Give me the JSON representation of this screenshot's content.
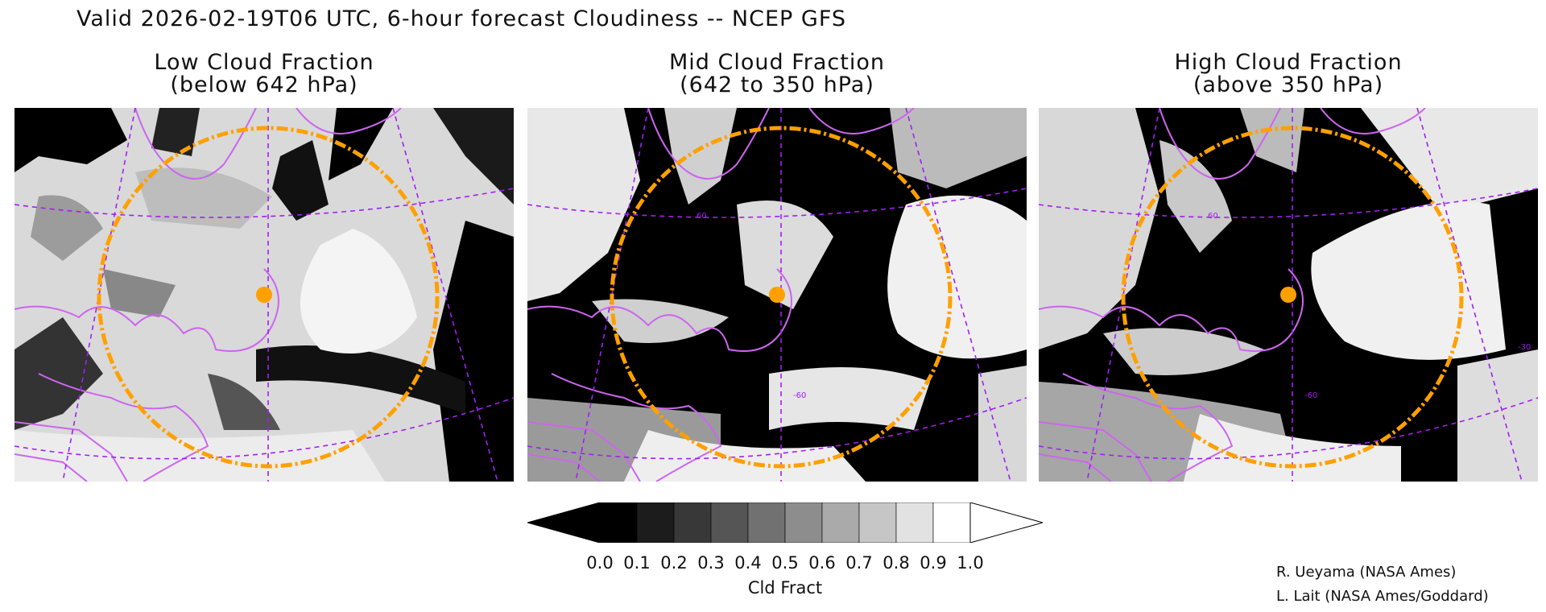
{
  "title": "Valid 2026-02-19T06 UTC, 6-hour forecast Cloudiness -- NCEP GFS",
  "panels": [
    {
      "title": "Low Cloud Fraction",
      "subtitle": "(below 642 hPa)"
    },
    {
      "title": "Mid Cloud Fraction",
      "subtitle": "(642 to 350 hPa)"
    },
    {
      "title": "High Cloud Fraction",
      "subtitle": "(above 350 hPa)"
    }
  ],
  "colorbar": {
    "ticks": [
      "0.0",
      "0.1",
      "0.2",
      "0.3",
      "0.4",
      "0.5",
      "0.6",
      "0.7",
      "0.8",
      "0.9",
      "1.0"
    ],
    "label": "Cld Fract",
    "colors": [
      "#000000",
      "#1c1c1c",
      "#383838",
      "#555555",
      "#717171",
      "#8d8d8d",
      "#aaaaaa",
      "#c6c6c6",
      "#e2e2e2",
      "#ffffff"
    ]
  },
  "map_labels": {
    "lat": "60",
    "lon_a": "-30",
    "lon_b": "-60"
  },
  "colors": {
    "coastline": "#cc66ee",
    "grid": "#a020f0",
    "range_ring": "#ffa000",
    "marker": "#ffa000"
  },
  "credits": [
    "R. Ueyama (NASA Ames)",
    "L. Lait (NASA Ames/Goddard)"
  ]
}
